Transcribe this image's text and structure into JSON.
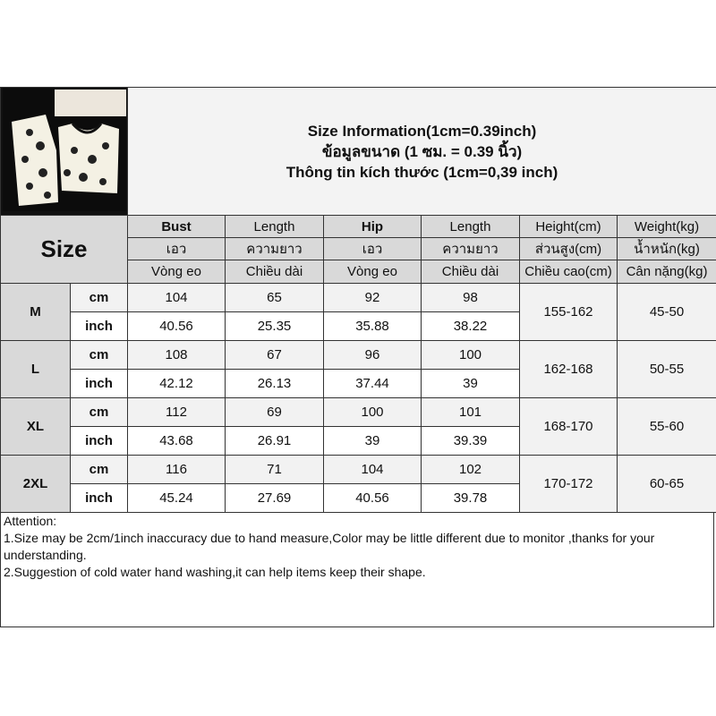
{
  "title": {
    "line1": "Size Information(1cm=0.39inch)",
    "line2": "ข้อมูลขนาด (1 ซม. = 0.39 นิ้ว)",
    "line3": "Thông tin kích thước (1cm=0,39 inch)"
  },
  "size_label": "Size",
  "columns": [
    {
      "en": "Bust",
      "th": "เอว",
      "vi": "Vòng eo"
    },
    {
      "en": "Length",
      "th": "ความยาว",
      "vi": "Chiều dài"
    },
    {
      "en": "Hip",
      "th": "เอว",
      "vi": "Vòng eo"
    },
    {
      "en": "Length",
      "th": "ความยาว",
      "vi": "Chiều dài"
    },
    {
      "en": "Height(cm)",
      "th": "ส่วนสูง(cm)",
      "vi": "Chiều cao(cm)"
    },
    {
      "en": "Weight(kg)",
      "th": "น้ำหนัก(kg)",
      "vi": "Cân nặng(kg)"
    }
  ],
  "units": {
    "cm": "cm",
    "inch": "inch"
  },
  "rows": [
    {
      "size": "M",
      "cm": [
        "104",
        "65",
        "92",
        "98"
      ],
      "inch": [
        "40.56",
        "25.35",
        "35.88",
        "38.22"
      ],
      "height": "155-162",
      "weight": "45-50"
    },
    {
      "size": "L",
      "cm": [
        "108",
        "67",
        "96",
        "100"
      ],
      "inch": [
        "42.12",
        "26.13",
        "37.44",
        "39"
      ],
      "height": "162-168",
      "weight": "50-55"
    },
    {
      "size": "XL",
      "cm": [
        "112",
        "69",
        "100",
        "101"
      ],
      "inch": [
        "43.68",
        "26.91",
        "39",
        "39.39"
      ],
      "height": "168-170",
      "weight": "55-60"
    },
    {
      "size": "2XL",
      "cm": [
        "116",
        "71",
        "104",
        "102"
      ],
      "inch": [
        "45.24",
        "27.69",
        "40.56",
        "39.78"
      ],
      "height": "170-172",
      "weight": "60-65"
    }
  ],
  "attention": {
    "heading": "Attention:",
    "note1": "1.Size may be 2cm/1inch inaccuracy due to hand measure,Color may be little different due to monitor ,thanks for your understanding.",
    "note2": "2.Suggestion of cold water hand washing,it can help items keep their shape."
  }
}
